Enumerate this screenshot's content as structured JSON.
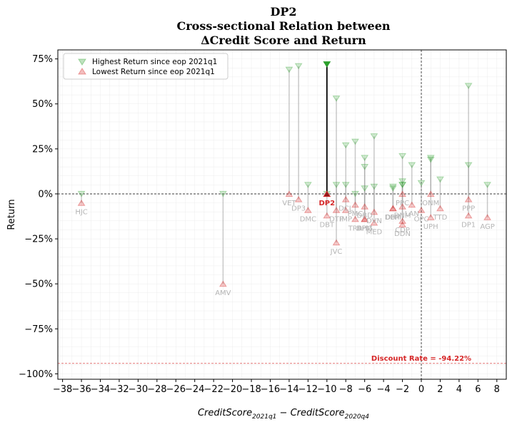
{
  "chart_data": {
    "type": "scatter",
    "title_lines": [
      "DP2",
      "Cross-sectional Relation between",
      "ΔCredit Score and Return"
    ],
    "xlabel": "CreditScore_2021q1 − CreditScore_2020q4",
    "xlabel_parts": {
      "main": "CreditScore",
      "sub1": "2021q1",
      "minus": " − ",
      "sub2": "2020q4"
    },
    "ylabel": "Return",
    "xlim": [
      -38.5,
      9
    ],
    "ylim": [
      -1.03,
      0.8
    ],
    "xticks": [
      -38,
      -36,
      -34,
      -32,
      -30,
      -28,
      -26,
      -24,
      -22,
      -20,
      -18,
      -16,
      -14,
      -12,
      -10,
      -8,
      -6,
      -4,
      -2,
      0,
      2,
      4,
      6,
      8
    ],
    "xtick_labels": [
      "−38",
      "−36",
      "−34",
      "−32",
      "−30",
      "−28",
      "−26",
      "−24",
      "−22",
      "−20",
      "−18",
      "−16",
      "−14",
      "−12",
      "−10",
      "−8",
      "−6",
      "−4",
      "−2",
      "0",
      "2",
      "4",
      "6",
      "8"
    ],
    "yticks": [
      0.75,
      0.5,
      0.25,
      0,
      -0.25,
      -0.5,
      -0.75,
      -1.0
    ],
    "ytick_labels": [
      "75%",
      "50%",
      "25%",
      "0%",
      "−25%",
      "−50%",
      "−75%",
      "−100%"
    ],
    "grid": true,
    "legend_position": "top-left",
    "legend": [
      {
        "label": "Highest Return since eop 2021q1",
        "marker": "triangle-down",
        "color": "#2ca02c"
      },
      {
        "label": "Lowest Return since eop 2021q1",
        "marker": "triangle-up",
        "color": "#d62728"
      }
    ],
    "reference_lines": {
      "zero_y": 0,
      "zero_x": 0
    },
    "discount_rate": {
      "value": -0.9422,
      "label": "Discount Rate = -94.22%",
      "color": "#d62728"
    },
    "highlight": "DP2",
    "colors": {
      "high": "#2ca02c",
      "low": "#d62728",
      "stem": "#999999",
      "label": "#b5b5b5",
      "highlight_stem": "#000000"
    },
    "companies": [
      {
        "name": "HJC",
        "x": -36,
        "high": 0.0,
        "low": -0.05
      },
      {
        "name": "AMV",
        "x": -21,
        "high": 0.0,
        "low": -0.5
      },
      {
        "name": "VET",
        "x": -14,
        "high": 0.69,
        "low": 0.0
      },
      {
        "name": "DP3",
        "x": -13,
        "high": 0.71,
        "low": -0.03
      },
      {
        "name": "DMC",
        "x": -12,
        "high": 0.05,
        "low": -0.09
      },
      {
        "name": "DP2",
        "x": -10,
        "high": 0.72,
        "low": 0.0
      },
      {
        "name": "DBT",
        "x": -10,
        "high": 0.0,
        "low": -0.12
      },
      {
        "name": "DTP",
        "x": -9,
        "high": 0.05,
        "low": -0.09
      },
      {
        "name": "JVC",
        "x": -9,
        "high": 0.53,
        "low": -0.27
      },
      {
        "name": "IMP",
        "x": -8,
        "high": 0.27,
        "low": -0.09
      },
      {
        "name": "DCL",
        "x": -8,
        "high": 0.05,
        "low": -0.03
      },
      {
        "name": "TRA",
        "x": -7,
        "high": 0.29,
        "low": -0.14
      },
      {
        "name": "PMC",
        "x": -7,
        "high": 0.0,
        "low": -0.06
      },
      {
        "name": "DHG",
        "x": -6,
        "high": 0.2,
        "low": -0.14
      },
      {
        "name": "DBD",
        "x": -6,
        "high": 0.15,
        "low": -0.07
      },
      {
        "name": "SPM",
        "x": -6,
        "high": 0.03,
        "low": -0.14
      },
      {
        "name": "MED",
        "x": -5,
        "high": 0.32,
        "low": -0.16
      },
      {
        "name": "DVN",
        "x": -5,
        "high": 0.04,
        "low": -0.1
      },
      {
        "name": "DHT",
        "x": -3,
        "high": 0.04,
        "low": -0.08
      },
      {
        "name": "DBM",
        "x": -3,
        "high": 0.03,
        "low": -0.08
      },
      {
        "name": "PPC",
        "x": -2,
        "high": 0.21,
        "low": 0.0
      },
      {
        "name": "DNM",
        "x": -2,
        "high": 0.07,
        "low": -0.07
      },
      {
        "name": "CDP",
        "x": -2,
        "high": 0.05,
        "low": -0.15
      },
      {
        "name": "DDN",
        "x": -2,
        "high": 0.05,
        "low": -0.17
      },
      {
        "name": "LAN",
        "x": -1,
        "high": 0.16,
        "low": -0.06
      },
      {
        "name": "OPC",
        "x": 0,
        "high": 0.06,
        "low": -0.09
      },
      {
        "name": "UPH",
        "x": 1,
        "high": 0.2,
        "low": -0.13
      },
      {
        "name": "ONM",
        "x": 1,
        "high": 0.19,
        "low": 0.0
      },
      {
        "name": "TTD",
        "x": 2,
        "high": 0.08,
        "low": -0.08
      },
      {
        "name": "PPP",
        "x": 5,
        "high": 0.6,
        "low": -0.03
      },
      {
        "name": "DP1",
        "x": 5,
        "high": 0.16,
        "low": -0.12
      },
      {
        "name": "AGP",
        "x": 7,
        "high": 0.05,
        "low": -0.13
      }
    ]
  }
}
